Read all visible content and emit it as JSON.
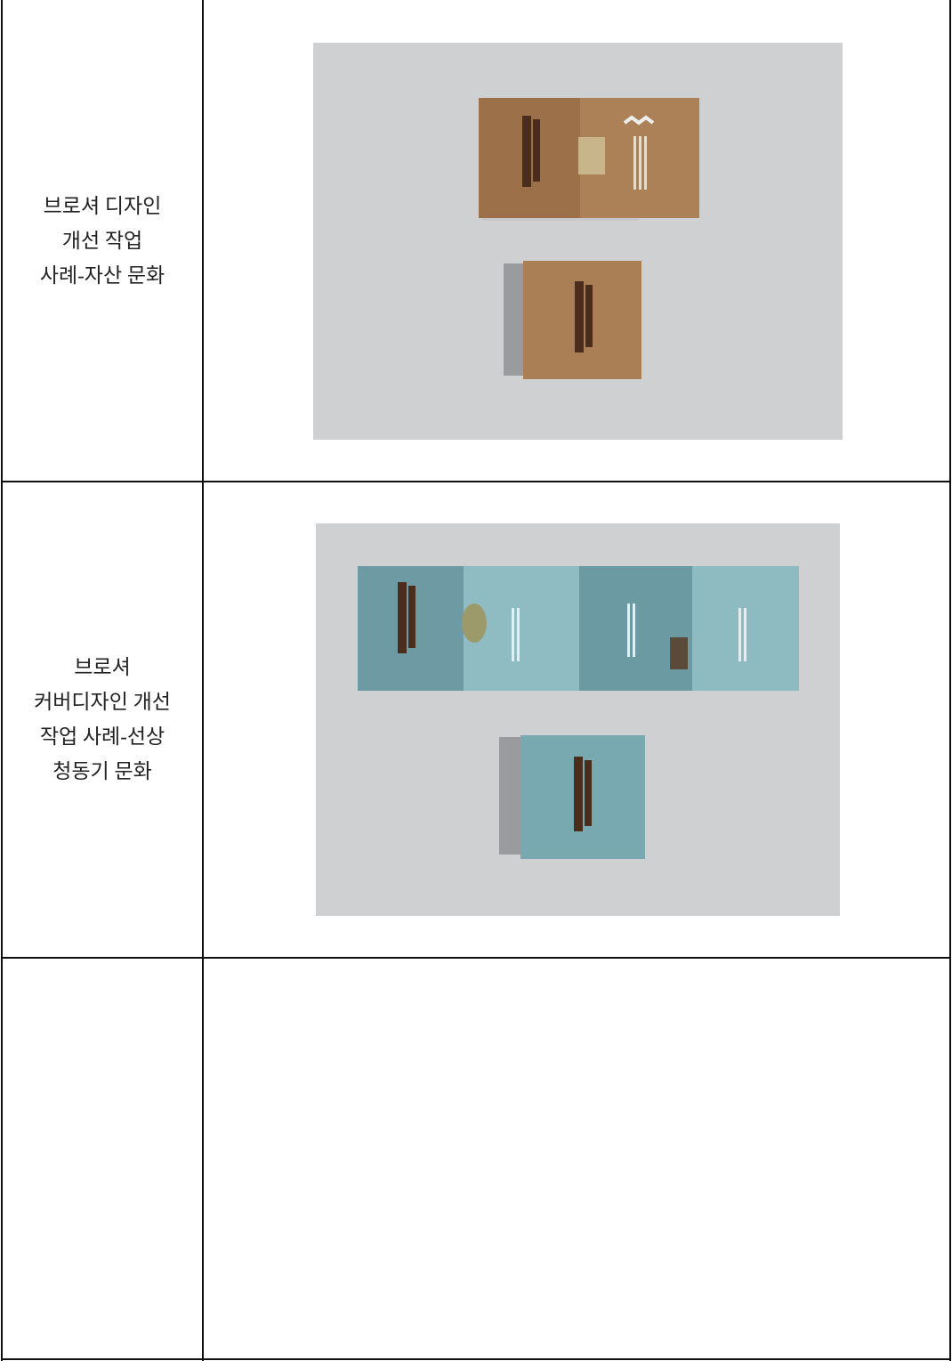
{
  "table": {
    "rows": [
      {
        "label_lines": [
          "브로셔 디자인",
          "개선 작업",
          "사례-자산 문화"
        ]
      },
      {
        "label_lines": [
          "브로셔",
          "커버디자인 개선",
          "작업 사례-선상",
          "청동기 문화"
        ]
      }
    ]
  }
}
